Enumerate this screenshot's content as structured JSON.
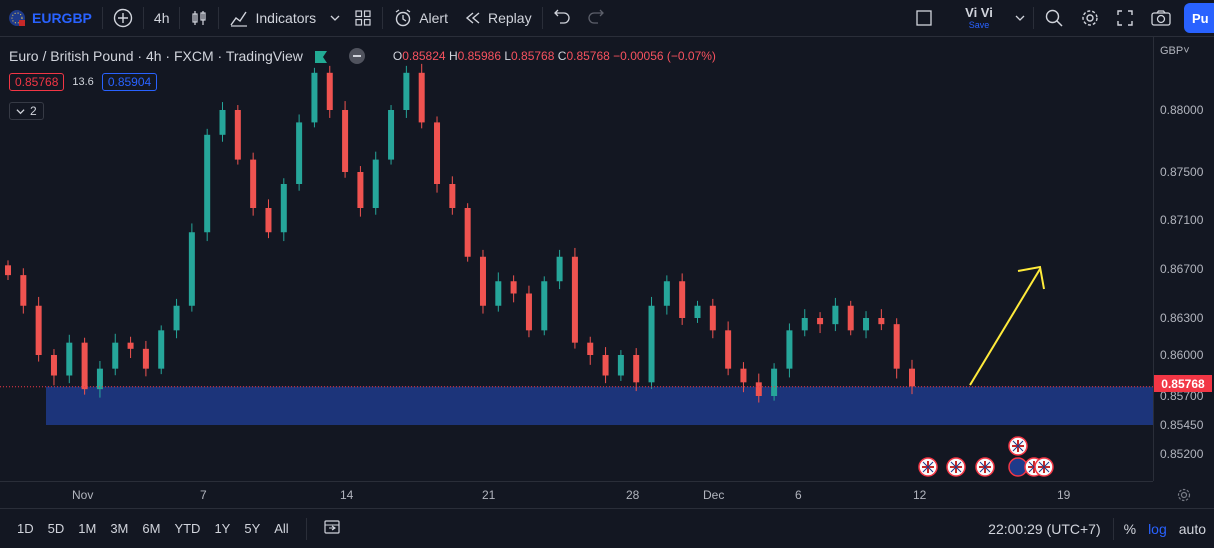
{
  "toolbar": {
    "symbol": "EURGBP",
    "interval": "4h",
    "indicators": "Indicators",
    "alert": "Alert",
    "replay": "Replay",
    "user": "Vi Vi",
    "save": "Save",
    "publish": "Pu"
  },
  "legend": {
    "title": "Euro / British Pound · 4h · FXCM · TradingView",
    "o_label": "O",
    "o": "0.85824",
    "h_label": "H",
    "h": "0.85986",
    "l_label": "L",
    "l": "0.85768",
    "c_label": "C",
    "c": "0.85768",
    "change": "−0.00056 (−0.07%)",
    "bid": "0.85768",
    "spread": "13.6",
    "ask": "0.85904",
    "indicator_count": "2"
  },
  "yaxis": {
    "currency": "GBP",
    "labels": [
      "0.88000",
      "0.87500",
      "0.87100",
      "0.86700",
      "0.86300",
      "0.86000",
      "0.85700",
      "0.85450",
      "0.85200"
    ],
    "last_price": "0.85768"
  },
  "xaxis": {
    "labels": [
      "Nov",
      "7",
      "14",
      "21",
      "28",
      "Dec",
      "6",
      "12",
      "19"
    ]
  },
  "bottombar": {
    "timeframes": [
      "1D",
      "5D",
      "1M",
      "3M",
      "6M",
      "YTD",
      "1Y",
      "5Y",
      "All"
    ],
    "clock": "22:00:29 (UTC+7)",
    "percent": "%",
    "log": "log",
    "auto": "auto"
  },
  "colors": {
    "up": "#26a69a",
    "down": "#ef5350",
    "zone": "#1e3a8a",
    "arrow": "#ffeb3b",
    "accent": "#2962ff"
  },
  "chart_data": {
    "type": "candlestick",
    "zone": {
      "from": 0.8545,
      "to": 0.85768
    },
    "arrow": {
      "from_date": "Dec 14",
      "to_date": "Dec 17",
      "from_price": 0.8578,
      "to_price": 0.867
    },
    "last_price": 0.85768,
    "series": [
      {
        "name": "EURGBP",
        "closes": [
          0.8665,
          0.864,
          0.86,
          0.8585,
          0.861,
          0.8575,
          0.859,
          0.861,
          0.8605,
          0.859,
          0.862,
          0.864,
          0.87,
          0.878,
          0.88,
          0.876,
          0.872,
          0.87,
          0.874,
          0.879,
          0.883,
          0.88,
          0.875,
          0.872,
          0.876,
          0.88,
          0.883,
          0.879,
          0.874,
          0.872,
          0.868,
          0.864,
          0.866,
          0.865,
          0.862,
          0.866,
          0.868,
          0.861,
          0.86,
          0.8585,
          0.86,
          0.858,
          0.864,
          0.866,
          0.863,
          0.864,
          0.862,
          0.859,
          0.858,
          0.857,
          0.859,
          0.862,
          0.863,
          0.8625,
          0.864,
          0.862,
          0.863,
          0.8625,
          0.859,
          0.8577
        ]
      }
    ]
  }
}
